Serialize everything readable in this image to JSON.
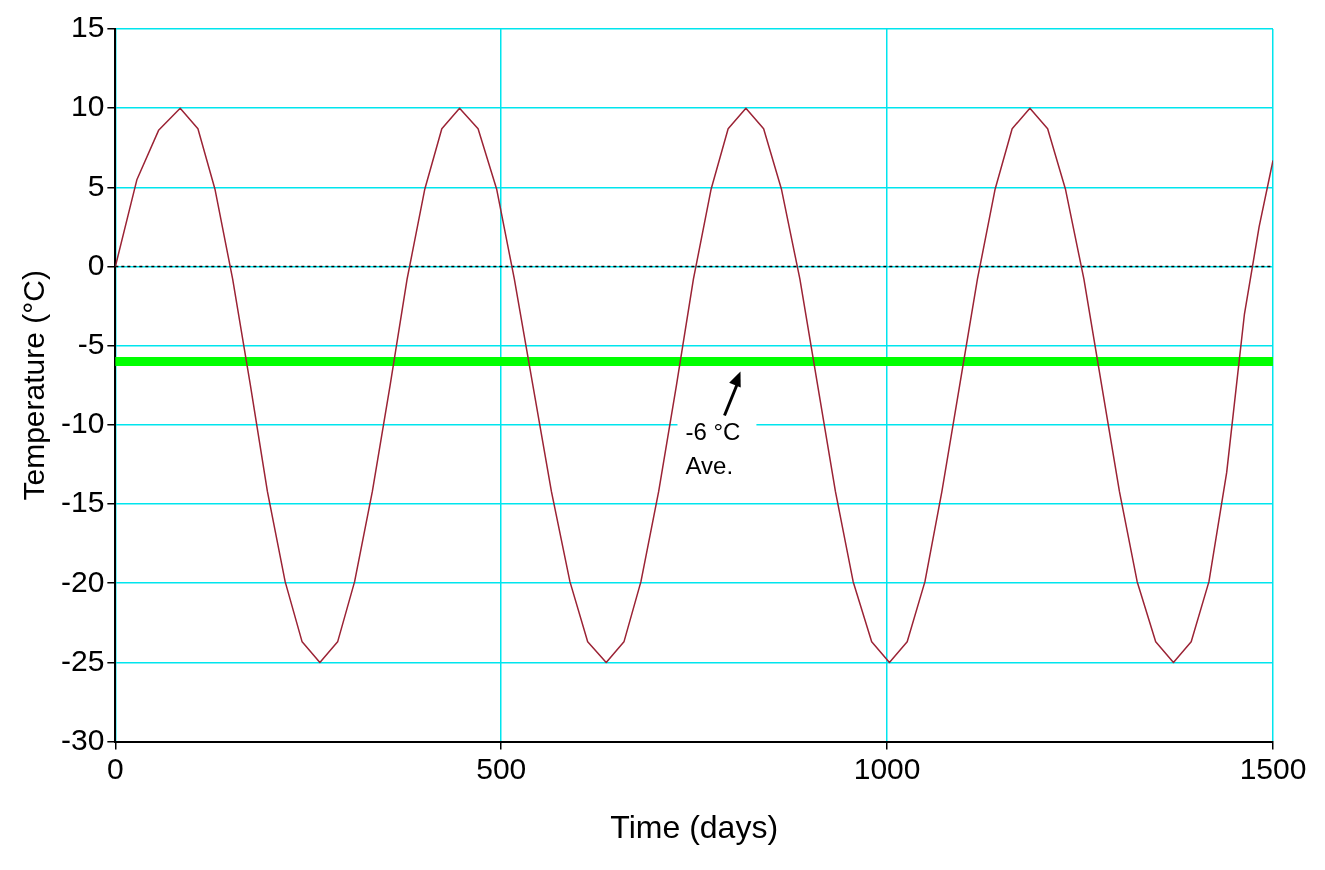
{
  "chart_data": {
    "type": "line",
    "xlabel": "Time (days)",
    "ylabel": "Temperature (°C)",
    "xlim": [
      0,
      1500
    ],
    "xticks": [
      0,
      500,
      1000,
      1500
    ],
    "ylim": [
      -30,
      15
    ],
    "yticks": [
      -30,
      -25,
      -20,
      -15,
      -10,
      -5,
      0,
      5,
      10,
      15
    ],
    "grid": true,
    "legend": false,
    "marker": "none",
    "line_style": "solid",
    "series": [
      {
        "color": "#9b2335",
        "x": [
          0,
          28,
          56,
          84,
          107,
          129,
          152,
          175,
          197,
          220,
          242,
          265,
          288,
          310,
          333,
          356,
          378,
          401,
          423,
          446,
          470,
          494,
          517,
          541,
          565,
          589,
          612,
          636,
          659,
          681,
          704,
          727,
          749,
          772,
          794,
          817,
          840,
          863,
          887,
          910,
          933,
          956,
          980,
          1003,
          1026,
          1049,
          1071,
          1094,
          1117,
          1140,
          1162,
          1185,
          1208,
          1231,
          1255,
          1278,
          1301,
          1324,
          1348,
          1371,
          1394,
          1417,
          1440,
          1463,
          1482,
          1500
        ],
        "values": [
          0,
          5.5,
          8.6,
          10,
          8.7,
          4.9,
          -0.8,
          -7.5,
          -14.2,
          -19.9,
          -23.7,
          -25,
          -23.7,
          -19.9,
          -14.2,
          -7.5,
          -0.8,
          4.9,
          8.7,
          10,
          8.7,
          4.9,
          -0.8,
          -7.5,
          -14.2,
          -19.9,
          -23.7,
          -25,
          -23.7,
          -19.9,
          -14.2,
          -7.5,
          -0.8,
          4.9,
          8.7,
          10,
          8.7,
          4.9,
          -0.8,
          -7.5,
          -14.2,
          -19.9,
          -23.7,
          -25,
          -23.7,
          -19.9,
          -14.2,
          -7.5,
          -0.8,
          4.9,
          8.7,
          10,
          8.7,
          4.9,
          -0.8,
          -7.5,
          -14.2,
          -19.9,
          -23.7,
          -25,
          -23.7,
          -19.9,
          -13,
          -3,
          2.5,
          6.7
        ]
      }
    ],
    "ref_lines": [
      {
        "axis": "y",
        "value": 0,
        "color": "#000000",
        "line_style": "dotted"
      },
      {
        "axis": "y",
        "value": -6,
        "color": "#00ff00",
        "label": "-6 °C\nAve."
      }
    ]
  }
}
